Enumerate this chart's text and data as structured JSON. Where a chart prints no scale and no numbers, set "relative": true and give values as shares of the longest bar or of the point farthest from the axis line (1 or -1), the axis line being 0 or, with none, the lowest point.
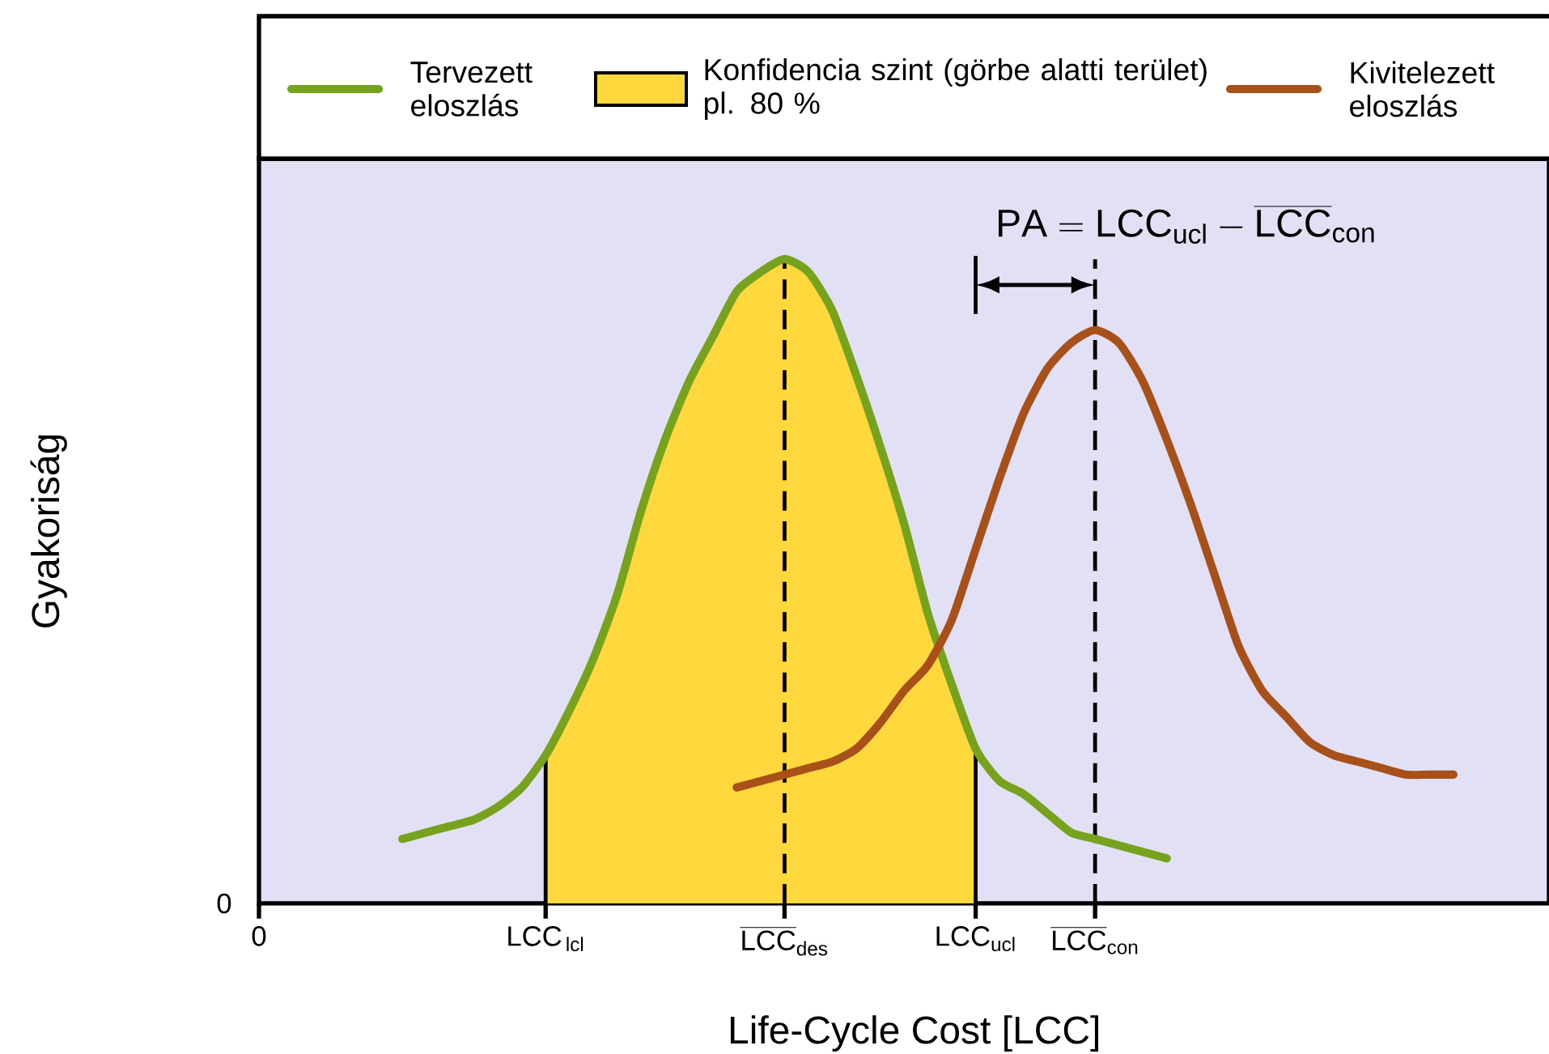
{
  "chart_data": {
    "type": "line",
    "relative": true,
    "xlabel": "Life-Cycle Cost [LCC]",
    "ylabel": "Gyakoriság",
    "categories": [
      "\\mathrm{0}",
      null,
      null,
      null,
      null,
      null,
      null,
      null,
      null,
      null,
      null,
      null,
      "\\mathrm{LCC}_{\\,\\mathrm{lcl}}",
      null,
      null,
      null,
      null,
      null,
      null,
      null,
      null,
      null,
      "\\overline{\\mathrm{LCC}}_{\\mathrm{des}}",
      null,
      null,
      null,
      null,
      null,
      null,
      null,
      "\\mathrm{LCC}_{\\mathrm{ucl}}",
      null,
      null,
      null,
      null,
      "\\overline{\\mathrm{LCC}}_{\\mathrm{con}}",
      null,
      null,
      null,
      null,
      null,
      null,
      null,
      null,
      null,
      null,
      null,
      null,
      null,
      null,
      null,
      null,
      null,
      null,
      null
    ],
    "series": [
      {
        "name": "Tervezett eloszlás",
        "color": "#76a21e",
        "values": [
          null,
          null,
          null,
          null,
          null,
          null,
          0.1,
          0.11,
          0.12,
          0.13,
          0.15,
          0.18,
          0.23,
          0.3,
          0.38,
          0.48,
          0.61,
          0.72,
          0.81,
          0.88,
          0.95,
          0.98,
          1.0,
          0.98,
          0.92,
          0.82,
          0.71,
          0.59,
          0.45,
          0.34,
          0.24,
          0.19,
          0.17,
          0.14,
          0.11,
          0.1,
          0.09,
          0.08,
          0.07,
          null,
          null,
          null,
          null,
          null,
          null,
          null,
          null,
          null,
          null,
          null,
          null,
          null,
          null,
          null,
          null
        ]
      },
      {
        "name": "Konfidencia szint (görbe alatti terület) pl. 80 %",
        "type": "area",
        "color": "#ffd83d",
        "values": [
          null,
          null,
          null,
          null,
          null,
          null,
          null,
          null,
          null,
          null,
          null,
          null,
          0.23,
          0.3,
          0.38,
          0.48,
          0.61,
          0.72,
          0.81,
          0.88,
          0.95,
          0.98,
          1.0,
          0.98,
          0.92,
          0.82,
          0.71,
          0.59,
          0.45,
          0.34,
          0.24,
          null,
          null,
          null,
          null,
          null,
          null,
          null,
          null,
          null,
          null,
          null,
          null,
          null,
          null,
          null,
          null,
          null,
          null,
          null,
          null,
          null,
          null,
          null,
          null
        ]
      },
      {
        "name": "Kivitelezett eloszlás",
        "color": "#a8501a",
        "values": [
          null,
          null,
          null,
          null,
          null,
          null,
          null,
          null,
          null,
          null,
          null,
          null,
          null,
          null,
          null,
          null,
          null,
          null,
          null,
          null,
          0.18,
          0.19,
          0.2,
          0.21,
          0.22,
          0.24,
          0.28,
          0.33,
          0.37,
          0.44,
          0.55,
          0.66,
          0.76,
          0.83,
          0.87,
          0.89,
          0.87,
          0.81,
          0.72,
          0.62,
          0.51,
          0.4,
          0.33,
          0.29,
          0.25,
          0.23,
          0.22,
          0.21,
          0.2,
          0.2,
          0.2,
          null,
          null,
          null,
          null
        ]
      }
    ],
    "ref_lines": [
      {
        "axis": "x",
        "value": "\\mathrm{LCC}_{\\,\\mathrm{lcl}}",
        "line_style": "solid"
      },
      {
        "axis": "x",
        "value": "\\overline{\\mathrm{LCC}}_{\\mathrm{des}}",
        "line_style": "dashed"
      },
      {
        "axis": "x",
        "value": "\\mathrm{LCC}_{\\mathrm{ucl}}",
        "line_style": "solid"
      },
      {
        "axis": "x",
        "value": "\\overline{\\mathrm{LCC}}_{\\mathrm{con}}",
        "line_style": "dashed"
      }
    ],
    "annotations": [
      "\\mathrm{PA} = \\mathrm{LCC}_{\\mathrm{ucl}} - \\overline{\\mathrm{LCC}}_{\\mathrm{con}}",
      "0"
    ],
    "legend": "top",
    "grid": false,
    "marker": "none",
    "line_style": "solid"
  }
}
